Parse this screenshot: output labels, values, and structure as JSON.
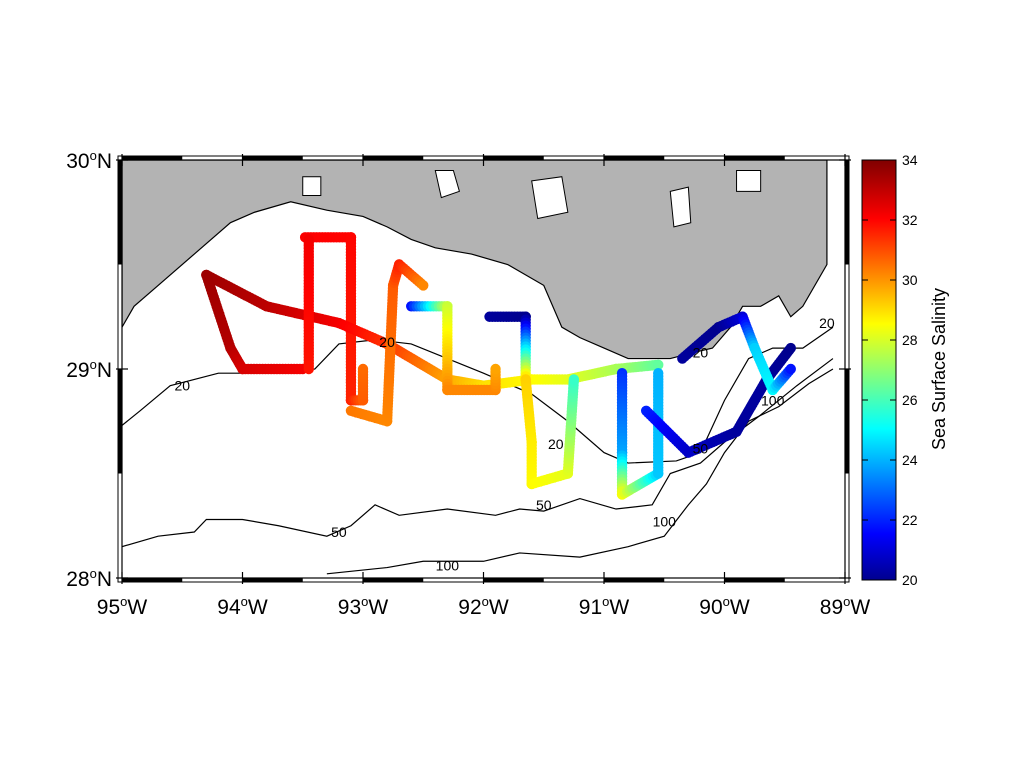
{
  "map": {
    "lon_range": [
      -95,
      -89
    ],
    "lat_range": [
      28,
      30
    ],
    "land_color": "#b3b3b3",
    "water_color": "#ffffff",
    "frame": "dashed-border"
  },
  "axes": {
    "lon_ticks": [
      {
        "deg": "95",
        "hemi": "W",
        "value": -95
      },
      {
        "deg": "94",
        "hemi": "W",
        "value": -94
      },
      {
        "deg": "93",
        "hemi": "W",
        "value": -93
      },
      {
        "deg": "92",
        "hemi": "W",
        "value": -92
      },
      {
        "deg": "91",
        "hemi": "W",
        "value": -91
      },
      {
        "deg": "90",
        "hemi": "W",
        "value": -90
      },
      {
        "deg": "89",
        "hemi": "W",
        "value": -89
      }
    ],
    "lat_ticks": [
      {
        "deg": "30",
        "hemi": "N",
        "value": 30
      },
      {
        "deg": "29",
        "hemi": "N",
        "value": 29
      },
      {
        "deg": "28",
        "hemi": "N",
        "value": 28
      }
    ],
    "degree_symbol": "o"
  },
  "colorbar": {
    "label": "Sea Surface Salinity",
    "min": 20,
    "max": 34,
    "ticks": [
      "34",
      "32",
      "30",
      "28",
      "26",
      "24",
      "22",
      "20"
    ],
    "colormap": "jet"
  },
  "isobaths": [
    {
      "label": "20",
      "value": 20
    },
    {
      "label": "50",
      "value": 50
    },
    {
      "label": "100",
      "value": 100
    }
  ],
  "chart_data": {
    "type": "scatter",
    "x_name": "longitude",
    "y_name": "latitude",
    "value_name": "Sea Surface Salinity",
    "tracks": [
      {
        "points": [
          [
            -93.48,
            29.63
          ],
          [
            -93.1,
            29.63
          ],
          [
            -93.1,
            28.85
          ],
          [
            -93.0,
            28.85
          ],
          [
            -93.0,
            29.0
          ]
        ],
        "values": [
          32.3,
          32.2,
          31.8,
          31.0,
          30.8
        ]
      },
      {
        "points": [
          [
            -94.3,
            29.45
          ],
          [
            -93.8,
            29.3
          ],
          [
            -93.2,
            29.22
          ],
          [
            -92.8,
            29.12
          ],
          [
            -92.3,
            28.95
          ],
          [
            -92.0,
            28.92
          ],
          [
            -91.6,
            28.95
          ],
          [
            -91.3,
            28.95
          ],
          [
            -90.9,
            29.0
          ],
          [
            -90.55,
            29.02
          ]
        ],
        "values": [
          33.6,
          33.2,
          32.4,
          31.6,
          30.0,
          29.2,
          28.8,
          28.4,
          27.6,
          26.6
        ]
      },
      {
        "points": [
          [
            -94.3,
            29.45
          ],
          [
            -94.1,
            29.1
          ],
          [
            -94.0,
            29.0
          ],
          [
            -93.5,
            29.0
          ]
        ],
        "values": [
          33.6,
          33.3,
          32.8,
          32.4
        ]
      },
      {
        "points": [
          [
            -93.45,
            29.62
          ],
          [
            -93.45,
            29.0
          ]
        ],
        "values": [
          32.4,
          32.0
        ]
      },
      {
        "points": [
          [
            -93.1,
            28.8
          ],
          [
            -92.8,
            28.75
          ],
          [
            -92.75,
            29.4
          ],
          [
            -92.7,
            29.5
          ],
          [
            -92.5,
            29.4
          ]
        ],
        "values": [
          30.6,
          30.4,
          31.0,
          31.8,
          30.4
        ]
      },
      {
        "points": [
          [
            -92.6,
            29.3
          ],
          [
            -92.3,
            29.3
          ],
          [
            -92.3,
            29.0
          ],
          [
            -92.3,
            28.9
          ],
          [
            -91.9,
            28.9
          ],
          [
            -91.9,
            29.0
          ]
        ],
        "values": [
          22.0,
          28.0,
          29.8,
          30.4,
          30.4,
          30.0
        ]
      },
      {
        "points": [
          [
            -91.95,
            29.25
          ],
          [
            -91.65,
            29.25
          ],
          [
            -91.65,
            28.95
          ],
          [
            -91.6,
            28.65
          ],
          [
            -91.6,
            28.45
          ],
          [
            -91.3,
            28.5
          ],
          [
            -91.25,
            28.95
          ]
        ],
        "values": [
          20.4,
          20.2,
          29.4,
          29.0,
          28.8,
          28.4,
          26.0
        ]
      },
      {
        "points": [
          [
            -90.85,
            28.98
          ],
          [
            -90.85,
            28.6
          ],
          [
            -90.85,
            28.4
          ],
          [
            -90.55,
            28.5
          ],
          [
            -90.55,
            28.98
          ]
        ],
        "values": [
          22.4,
          24.0,
          28.6,
          24.5,
          24.2
        ]
      },
      {
        "points": [
          [
            -90.65,
            28.8
          ],
          [
            -90.3,
            28.6
          ],
          [
            -89.9,
            28.7
          ],
          [
            -89.65,
            28.95
          ],
          [
            -89.45,
            29.1
          ]
        ],
        "values": [
          22.2,
          21.0,
          20.4,
          20.4,
          20.2
        ]
      },
      {
        "points": [
          [
            -90.35,
            29.05
          ],
          [
            -90.05,
            29.2
          ],
          [
            -89.85,
            29.25
          ],
          [
            -89.75,
            29.1
          ],
          [
            -89.6,
            28.9
          ],
          [
            -89.45,
            29.0
          ]
        ],
        "values": [
          20.4,
          20.2,
          21.2,
          24.6,
          25.2,
          22.0
        ]
      }
    ],
    "isobath_lines": [
      {
        "label": "20",
        "points": [
          [
            -95.0,
            28.73
          ],
          [
            -94.85,
            28.8
          ],
          [
            -94.6,
            28.92
          ],
          [
            -94.2,
            28.98
          ],
          [
            -93.8,
            28.98
          ],
          [
            -93.4,
            29.0
          ],
          [
            -93.2,
            29.12
          ],
          [
            -92.9,
            29.14
          ],
          [
            -92.6,
            29.12
          ],
          [
            -92.3,
            29.05
          ],
          [
            -92.0,
            28.98
          ],
          [
            -91.6,
            28.88
          ],
          [
            -91.3,
            28.75
          ],
          [
            -91.0,
            28.6
          ],
          [
            -90.8,
            28.55
          ],
          [
            -90.4,
            28.56
          ],
          [
            -90.2,
            28.6
          ],
          [
            -90.0,
            28.85
          ],
          [
            -89.8,
            29.05
          ],
          [
            -89.6,
            29.1
          ],
          [
            -89.35,
            29.1
          ],
          [
            -89.1,
            29.2
          ]
        ]
      },
      {
        "label": "50",
        "points": [
          [
            -95.0,
            28.15
          ],
          [
            -94.7,
            28.2
          ],
          [
            -94.4,
            28.22
          ],
          [
            -94.3,
            28.28
          ],
          [
            -94.0,
            28.28
          ],
          [
            -93.7,
            28.25
          ],
          [
            -93.3,
            28.2
          ],
          [
            -93.1,
            28.25
          ],
          [
            -92.9,
            28.35
          ],
          [
            -92.7,
            28.3
          ],
          [
            -92.3,
            28.33
          ],
          [
            -91.9,
            28.3
          ],
          [
            -91.7,
            28.33
          ],
          [
            -91.5,
            28.32
          ],
          [
            -91.2,
            28.38
          ],
          [
            -90.9,
            28.33
          ],
          [
            -90.6,
            28.35
          ],
          [
            -90.45,
            28.5
          ],
          [
            -90.2,
            28.55
          ],
          [
            -90.0,
            28.65
          ],
          [
            -89.7,
            28.78
          ],
          [
            -89.4,
            28.92
          ],
          [
            -89.1,
            29.05
          ]
        ]
      },
      {
        "label": "100",
        "points": [
          [
            -93.3,
            28.02
          ],
          [
            -92.8,
            28.05
          ],
          [
            -92.5,
            28.08
          ],
          [
            -92.0,
            28.08
          ],
          [
            -91.7,
            28.12
          ],
          [
            -91.2,
            28.1
          ],
          [
            -90.8,
            28.15
          ],
          [
            -90.5,
            28.2
          ],
          [
            -90.3,
            28.35
          ],
          [
            -90.15,
            28.45
          ],
          [
            -90.0,
            28.6
          ],
          [
            -89.8,
            28.75
          ],
          [
            -89.55,
            28.82
          ],
          [
            -89.3,
            28.93
          ],
          [
            -89.1,
            29.0
          ]
        ]
      }
    ],
    "isobath_label_positions": [
      {
        "label": "20",
        "at": [
          -92.8,
          29.13
        ]
      },
      {
        "label": "20",
        "at": [
          -94.5,
          28.92
        ]
      },
      {
        "label": "20",
        "at": [
          -91.4,
          28.64
        ]
      },
      {
        "label": "20",
        "at": [
          -90.2,
          29.08
        ]
      },
      {
        "label": "20",
        "at": [
          -89.15,
          29.22
        ]
      },
      {
        "label": "50",
        "at": [
          -93.2,
          28.22
        ]
      },
      {
        "label": "50",
        "at": [
          -91.5,
          28.35
        ]
      },
      {
        "label": "50",
        "at": [
          -90.2,
          28.62
        ]
      },
      {
        "label": "100",
        "at": [
          -92.3,
          28.06
        ]
      },
      {
        "label": "100",
        "at": [
          -90.5,
          28.27
        ]
      },
      {
        "label": "100",
        "at": [
          -89.6,
          28.85
        ]
      }
    ],
    "land_polygons": [
      [
        [
          -95.0,
          30.0
        ],
        [
          -89.15,
          30.0
        ],
        [
          -89.15,
          29.5
        ],
        [
          -89.35,
          29.3
        ],
        [
          -89.45,
          29.25
        ],
        [
          -89.55,
          29.35
        ],
        [
          -89.7,
          29.3
        ],
        [
          -89.85,
          29.3
        ],
        [
          -89.95,
          29.2
        ],
        [
          -90.1,
          29.1
        ],
        [
          -90.25,
          29.08
        ],
        [
          -90.45,
          29.05
        ],
        [
          -90.6,
          29.05
        ],
        [
          -90.8,
          29.05
        ],
        [
          -91.0,
          29.1
        ],
        [
          -91.2,
          29.15
        ],
        [
          -91.35,
          29.2
        ],
        [
          -91.5,
          29.4
        ],
        [
          -91.8,
          29.5
        ],
        [
          -92.1,
          29.55
        ],
        [
          -92.4,
          29.58
        ],
        [
          -92.6,
          29.62
        ],
        [
          -92.8,
          29.68
        ],
        [
          -93.0,
          29.73
        ],
        [
          -93.3,
          29.76
        ],
        [
          -93.6,
          29.8
        ],
        [
          -93.9,
          29.75
        ],
        [
          -94.1,
          29.7
        ],
        [
          -94.4,
          29.55
        ],
        [
          -94.7,
          29.4
        ],
        [
          -94.9,
          29.3
        ],
        [
          -95.0,
          29.2
        ]
      ]
    ],
    "lakes": [
      [
        [
          -93.5,
          29.92
        ],
        [
          -93.35,
          29.92
        ],
        [
          -93.35,
          29.83
        ],
        [
          -93.5,
          29.83
        ]
      ],
      [
        [
          -92.4,
          29.95
        ],
        [
          -92.25,
          29.95
        ],
        [
          -92.2,
          29.85
        ],
        [
          -92.35,
          29.82
        ]
      ],
      [
        [
          -91.6,
          29.9
        ],
        [
          -91.35,
          29.92
        ],
        [
          -91.3,
          29.75
        ],
        [
          -91.55,
          29.72
        ]
      ],
      [
        [
          -90.45,
          29.85
        ],
        [
          -90.3,
          29.87
        ],
        [
          -90.28,
          29.7
        ],
        [
          -90.42,
          29.68
        ]
      ],
      [
        [
          -89.9,
          29.95
        ],
        [
          -89.7,
          29.95
        ],
        [
          -89.7,
          29.85
        ],
        [
          -89.9,
          29.85
        ]
      ]
    ]
  }
}
